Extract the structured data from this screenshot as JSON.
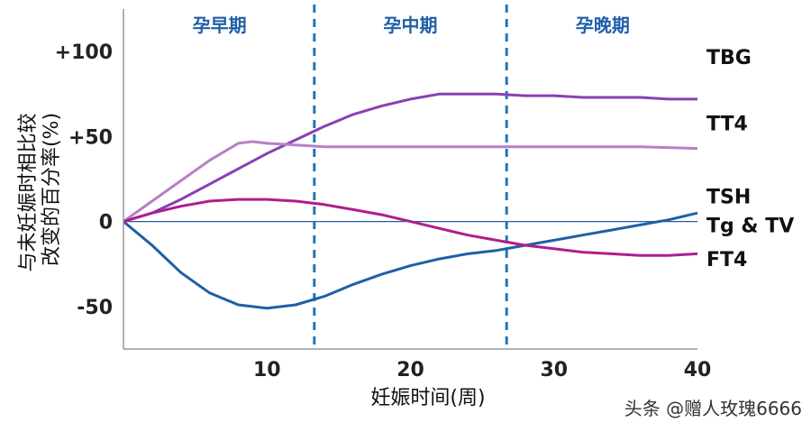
{
  "chart_data": {
    "type": "line",
    "title": "",
    "xlabel": "妊娠时间(周)",
    "ylabel": "与未妊娠时相比较改变的百分率(%)",
    "xlim": [
      0,
      40
    ],
    "ylim": [
      -75,
      125
    ],
    "x_ticks": [
      {
        "value": 10,
        "label": "10"
      },
      {
        "value": 20,
        "label": "20"
      },
      {
        "value": 30,
        "label": "30"
      },
      {
        "value": 40,
        "label": "40"
      }
    ],
    "y_ticks": [
      {
        "value": 100,
        "label": "+100"
      },
      {
        "value": 50,
        "label": "+50"
      },
      {
        "value": 0,
        "label": "0"
      },
      {
        "value": -50,
        "label": "-50"
      }
    ],
    "trimesters": [
      {
        "label": "孕早期",
        "x_center": 6.7
      },
      {
        "label": "孕中期",
        "x_center": 20
      },
      {
        "label": "孕晚期",
        "x_center": 33.4
      }
    ],
    "trimester_dividers": [
      13.3,
      26.7
    ],
    "baseline": 0,
    "series": [
      {
        "name": "TBG",
        "color": "#8a3fb5",
        "points": [
          [
            0,
            0
          ],
          [
            2,
            5
          ],
          [
            4,
            13
          ],
          [
            6,
            22
          ],
          [
            8,
            31
          ],
          [
            10,
            40
          ],
          [
            12,
            48
          ],
          [
            14,
            56
          ],
          [
            16,
            63
          ],
          [
            18,
            68
          ],
          [
            20,
            72
          ],
          [
            22,
            75
          ],
          [
            24,
            75
          ],
          [
            26,
            75
          ],
          [
            28,
            74
          ],
          [
            30,
            74
          ],
          [
            32,
            73
          ],
          [
            34,
            73
          ],
          [
            36,
            73
          ],
          [
            38,
            72
          ],
          [
            40,
            72
          ]
        ]
      },
      {
        "name": "TT4",
        "color": "#b97ec6",
        "points": [
          [
            0,
            0
          ],
          [
            2,
            12
          ],
          [
            4,
            24
          ],
          [
            6,
            36
          ],
          [
            8,
            46
          ],
          [
            9,
            47
          ],
          [
            10,
            46
          ],
          [
            12,
            45
          ],
          [
            14,
            44
          ],
          [
            16,
            44
          ],
          [
            18,
            44
          ],
          [
            20,
            44
          ],
          [
            24,
            44
          ],
          [
            28,
            44
          ],
          [
            32,
            44
          ],
          [
            36,
            44
          ],
          [
            40,
            43
          ]
        ]
      },
      {
        "name": "TSH",
        "color": "#1f5fa8",
        "points": [
          [
            0,
            0
          ],
          [
            2,
            -14
          ],
          [
            4,
            -30
          ],
          [
            6,
            -42
          ],
          [
            8,
            -49
          ],
          [
            10,
            -51
          ],
          [
            12,
            -49
          ],
          [
            14,
            -44
          ],
          [
            16,
            -37
          ],
          [
            18,
            -31
          ],
          [
            20,
            -26
          ],
          [
            22,
            -22
          ],
          [
            24,
            -19
          ],
          [
            26,
            -17
          ],
          [
            28,
            -14
          ],
          [
            30,
            -11
          ],
          [
            32,
            -8
          ],
          [
            34,
            -5
          ],
          [
            36,
            -2
          ],
          [
            38,
            1
          ],
          [
            40,
            5
          ]
        ]
      },
      {
        "name": "FT4",
        "color": "#b01d8c",
        "points": [
          [
            0,
            0
          ],
          [
            2,
            5
          ],
          [
            4,
            9
          ],
          [
            6,
            12
          ],
          [
            8,
            13
          ],
          [
            10,
            13
          ],
          [
            12,
            12
          ],
          [
            14,
            10
          ],
          [
            16,
            7
          ],
          [
            18,
            4
          ],
          [
            20,
            0
          ],
          [
            22,
            -4
          ],
          [
            24,
            -8
          ],
          [
            26,
            -11
          ],
          [
            28,
            -14
          ],
          [
            30,
            -16
          ],
          [
            32,
            -18
          ],
          [
            34,
            -19
          ],
          [
            36,
            -20
          ],
          [
            38,
            -20
          ],
          [
            40,
            -19
          ]
        ]
      }
    ],
    "series_labels": [
      {
        "text": "TBG",
        "y_value": 97
      },
      {
        "text": "TT4",
        "y_value": 58
      },
      {
        "text": "TSH",
        "y_value": 15
      },
      {
        "text": "Tg & TV",
        "y_value": -2
      },
      {
        "text": "FT4",
        "y_value": -22
      }
    ],
    "watermark": "头条 @赠人玫瑰6666"
  }
}
